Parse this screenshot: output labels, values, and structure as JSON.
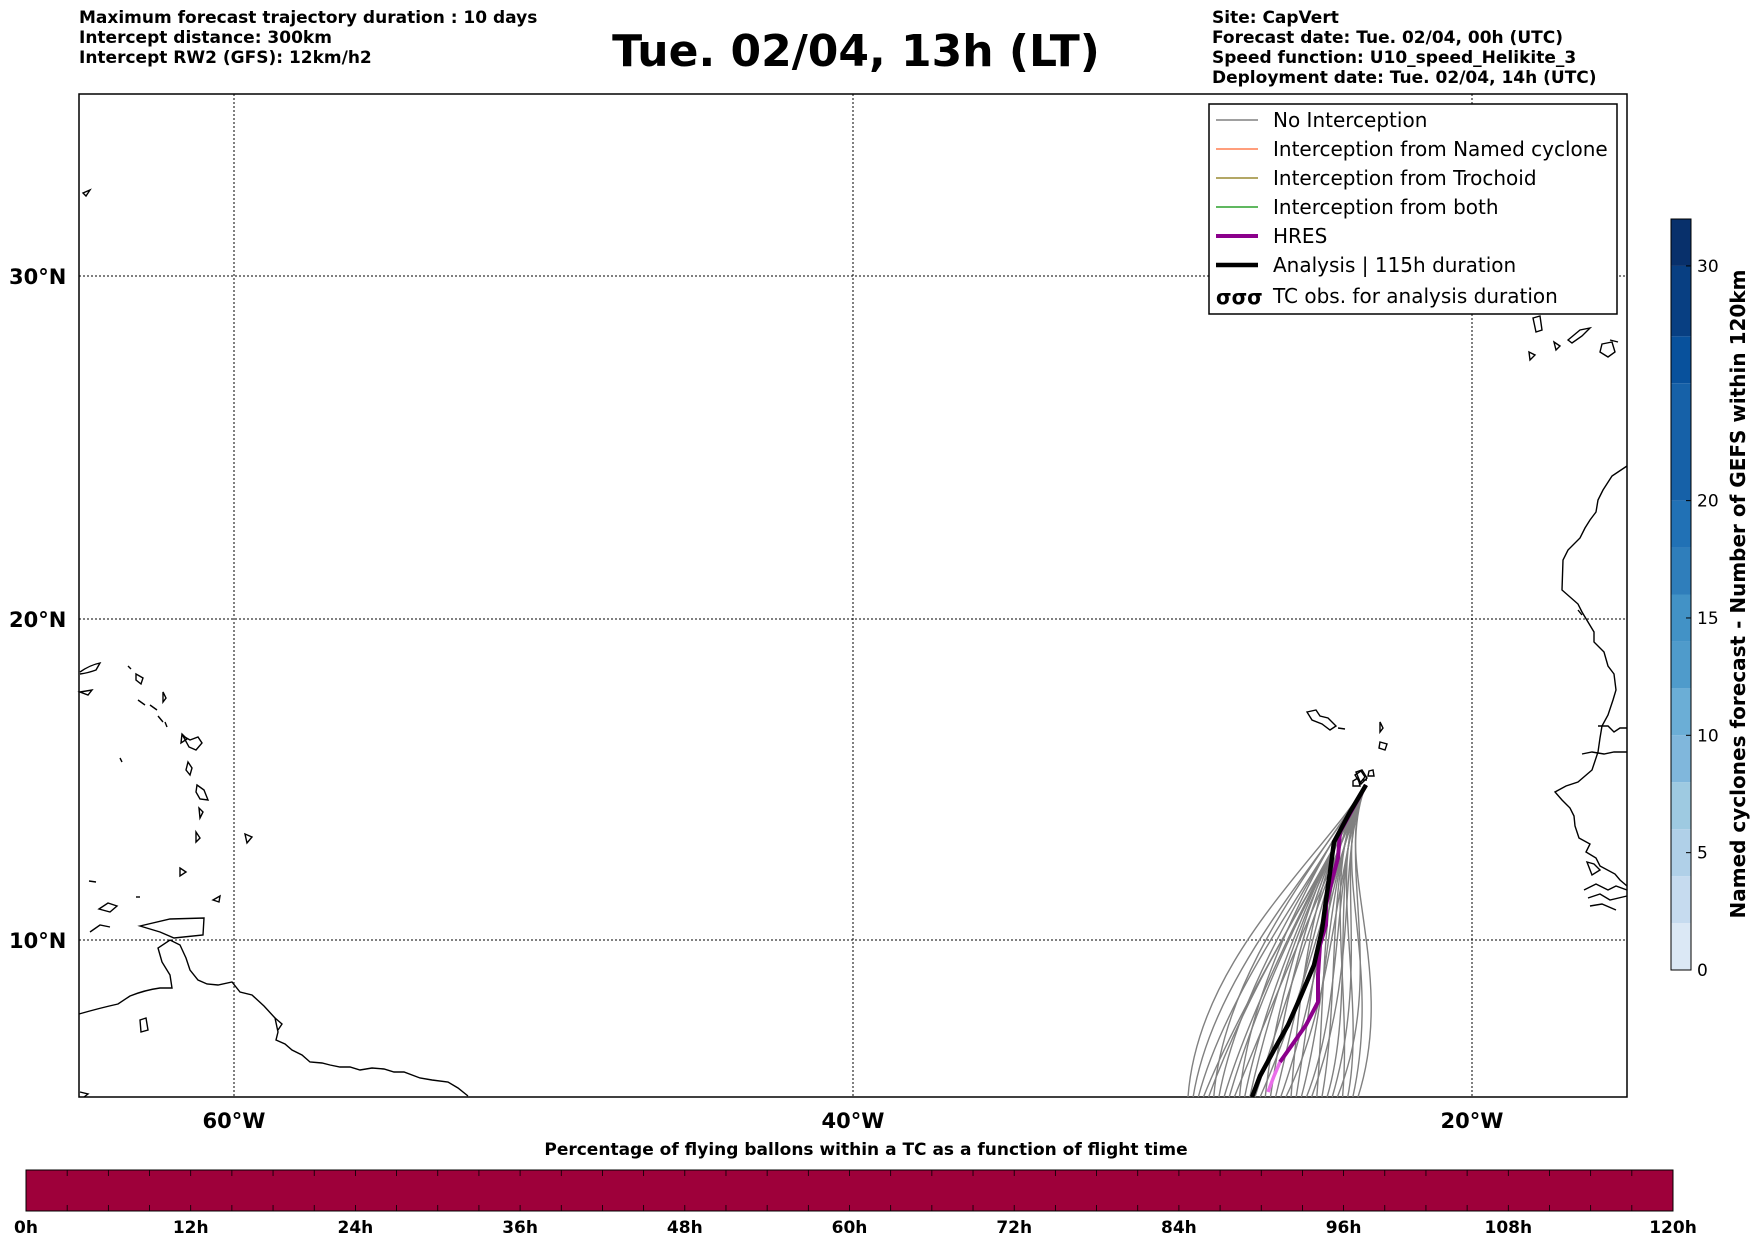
{
  "header": {
    "left_lines": [
      "Maximum forecast trajectory duration : 10 days",
      "Intercept distance: 300km",
      "Intercept RW2 (GFS):  12km/h2"
    ],
    "title": "Tue. 02/04, 13h (LT)",
    "right_lines": [
      "Site: CapVert",
      "Forecast date: Tue. 02/04, 00h (UTC)",
      "Speed function: U10_speed_Helikite_3",
      "Deployment date: Tue. 02/04, 14h (UTC)"
    ]
  },
  "map": {
    "lat_ticks": [
      "30°N",
      "20°N",
      "10°N"
    ],
    "lon_ticks": [
      "60°W",
      "40°W",
      "20°W"
    ],
    "gridlines": true,
    "site": "CapVert"
  },
  "legend": {
    "items": [
      {
        "label": "No Interception",
        "color": "#808080",
        "style": "thin"
      },
      {
        "label": "Interception from Named cyclone",
        "color": "#ff7f50",
        "style": "thin"
      },
      {
        "label": "Interception from Trochoid",
        "color": "#9a8a32",
        "style": "thin"
      },
      {
        "label": "Interception from both",
        "color": "#2ca02c",
        "style": "thin"
      },
      {
        "label": "HRES",
        "color": "#8b008b",
        "style": "thick"
      },
      {
        "label": "Analysis | 115h duration",
        "color": "#000000",
        "style": "thick"
      },
      {
        "label": "TC obs. for analysis duration",
        "color": "#000000",
        "style": "symbol"
      }
    ],
    "symbol_glyphs": "σσσ"
  },
  "colorbar_right": {
    "label": "Named cyclones forecast - Number of GEFS within 120km",
    "ticks": [
      "0",
      "5",
      "10",
      "15",
      "20",
      "30"
    ],
    "colors": [
      "#dbe8f5",
      "#c6dbef",
      "#b0d0e8",
      "#9ecae1",
      "#80b7dc",
      "#6baed6",
      "#4f9bcb",
      "#4292c6",
      "#2f7ebb",
      "#2171b5",
      "#1661a8",
      "#08519c",
      "#083f82",
      "#08306b"
    ]
  },
  "colorbar_bottom": {
    "title": "Percentage of flying ballons within a TC as a function of flight time",
    "ticks": [
      "0h",
      "12h",
      "24h",
      "36h",
      "48h",
      "60h",
      "72h",
      "84h",
      "96h",
      "108h",
      "120h"
    ],
    "fill_color": "#9e003a"
  }
}
